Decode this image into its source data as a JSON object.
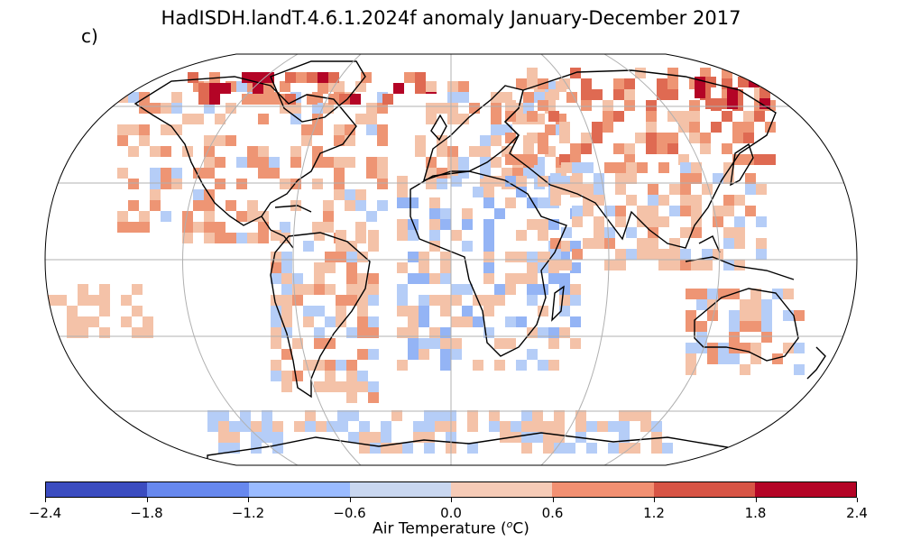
{
  "title": "HadISDH.landT.4.6.1.2024f anomaly January-December 2017",
  "panel_label": "c)",
  "colorbar": {
    "label_prefix": "Air Temperature (",
    "label_sup": "o",
    "label_suffix": "C)",
    "ticks": [
      "−2.4",
      "−1.8",
      "−1.2",
      "−0.6",
      "0.0",
      "0.6",
      "1.2",
      "1.8",
      "2.4"
    ],
    "colors": [
      "#3b4cc0",
      "#6788ee",
      "#9abbff",
      "#c9d7f0",
      "#f6cbb7",
      "#f29072",
      "#d75445",
      "#b40426"
    ]
  },
  "map_colors": {
    "cool_light": "#b5cdf7",
    "cool_mid": "#94b4f5",
    "warm_light": "#f4c2a8",
    "warm_mid": "#ee9574",
    "warm_strong": "#df6a52",
    "hot": "#b40426",
    "grid": "#b0b0b0",
    "coast": "#000000"
  }
}
